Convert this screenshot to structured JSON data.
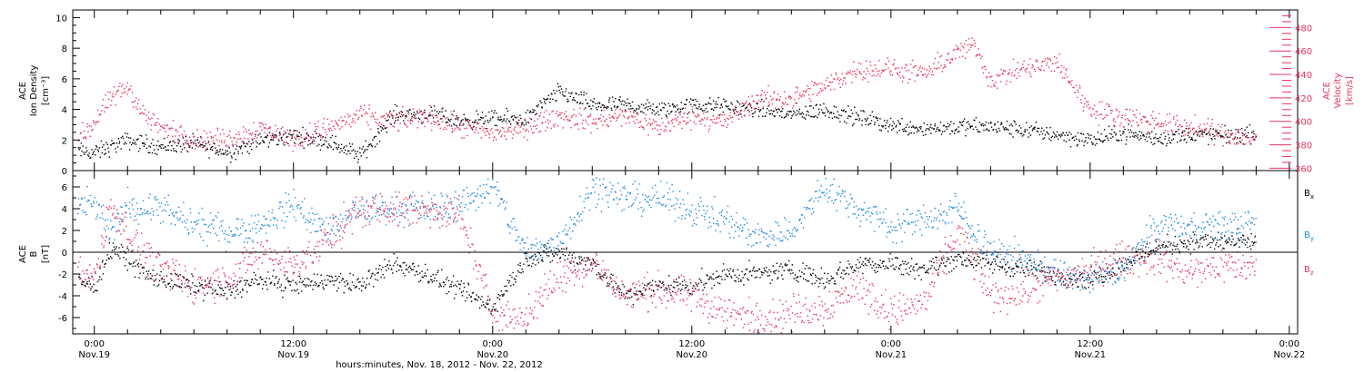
{
  "colors": {
    "black": "#000000",
    "pink": "#e8325f",
    "blue": "#1f87e5",
    "frame": "#000000"
  },
  "x_axis": {
    "title": "hours:minutes, Nov. 18, 2012 - Nov. 22, 2012",
    "range_hours": [
      -1.3,
      72.5
    ],
    "labeled_ticks": [
      {
        "hours": 0,
        "time": "0:00",
        "date": "Nov.19"
      },
      {
        "hours": 12,
        "time": "12:00",
        "date": "Nov.19"
      },
      {
        "hours": 24,
        "time": "0:00",
        "date": "Nov.20"
      },
      {
        "hours": 36,
        "time": "12:00",
        "date": "Nov.20"
      },
      {
        "hours": 48,
        "time": "0:00",
        "date": "Nov.21"
      },
      {
        "hours": 60,
        "time": "12:00",
        "date": "Nov.21"
      },
      {
        "hours": 72,
        "time": "0:00",
        "date": "Nov.22"
      }
    ],
    "minor_tick_step_hours": 2
  },
  "top_panel": {
    "left_label": [
      "ACE",
      "Ion Density",
      "[cm⁻³]"
    ],
    "right_label": [
      "ACE",
      "Velocity",
      "[km/s]"
    ],
    "left_ticks": [
      "0",
      "2",
      "4",
      "6",
      "8",
      "10"
    ],
    "right_ticks": [
      "360",
      "380",
      "400",
      "420",
      "440",
      "460",
      "480"
    ]
  },
  "bottom_panel": {
    "left_label": [
      "ACE",
      "B",
      "[nT]"
    ],
    "ticks": [
      "-6",
      "-4",
      "-2",
      "0",
      "2",
      "4",
      "6"
    ],
    "legend": [
      {
        "main": "B",
        "sub": "x",
        "color": "#000000"
      },
      {
        "main": "B",
        "sub": "y",
        "color": "#1f87e5"
      },
      {
        "main": "B",
        "sub": "z",
        "color": "#e8325f"
      }
    ]
  },
  "chart_data": [
    {
      "type": "scatter",
      "title": "",
      "xlabel": "hours:minutes, Nov. 18, 2012 - Nov. 22, 2012",
      "x_unit": "hours since 0:00 Nov.19, 2012",
      "ylabel": "ACE Ion Density [cm^-3]",
      "ylim": [
        0,
        10.5
      ],
      "y2label": "ACE Velocity [km/s]",
      "y2lim": [
        358,
        495
      ],
      "grid": false,
      "series": [
        {
          "name": "Ion Density",
          "axis": "left",
          "color": "#000000",
          "x": [
            -1,
            0,
            2,
            4,
            6,
            8,
            10,
            12,
            14,
            16,
            18,
            20,
            22,
            24,
            26,
            28,
            30,
            32,
            34,
            36,
            38,
            40,
            42,
            44,
            46,
            48,
            50,
            52,
            54,
            56,
            58,
            60,
            62,
            64,
            66,
            68,
            70
          ],
          "y": [
            1.3,
            1.2,
            2.0,
            1.6,
            1.8,
            1.2,
            2.0,
            2.3,
            2.0,
            1.0,
            3.7,
            3.7,
            3.3,
            3.4,
            3.4,
            5.2,
            4.3,
            4.3,
            4.0,
            4.3,
            4.2,
            4.0,
            3.7,
            4.0,
            3.5,
            3.0,
            2.8,
            2.9,
            2.9,
            2.7,
            2.4,
            2.0,
            2.5,
            2.1,
            2.4,
            2.3,
            2.4
          ]
        },
        {
          "name": "Velocity",
          "axis": "right",
          "color": "#e8325f",
          "x": [
            -1,
            0,
            1,
            2,
            3,
            4,
            6,
            8,
            10,
            12,
            14,
            16,
            18,
            20,
            22,
            24,
            26,
            28,
            30,
            32,
            34,
            36,
            38,
            40,
            42,
            44,
            46,
            48,
            50,
            52,
            53,
            54,
            56,
            58,
            60,
            62,
            64,
            66,
            68,
            70
          ],
          "y": [
            385,
            400,
            420,
            430,
            405,
            395,
            385,
            385,
            395,
            385,
            395,
            405,
            400,
            405,
            395,
            390,
            395,
            405,
            400,
            405,
            395,
            405,
            400,
            420,
            420,
            430,
            445,
            445,
            440,
            460,
            465,
            435,
            445,
            450,
            410,
            405,
            400,
            395,
            390,
            385
          ]
        }
      ]
    },
    {
      "type": "scatter",
      "title": "",
      "xlabel": "hours:minutes, Nov. 18, 2012 - Nov. 22, 2012",
      "x_unit": "hours since 0:00 Nov.19, 2012",
      "ylabel": "ACE B [nT]",
      "ylim": [
        -7.5,
        7.5
      ],
      "grid": false,
      "reference_line_y": 0,
      "series": [
        {
          "name": "Bx",
          "color": "#000000",
          "x": [
            -1,
            0,
            1,
            2,
            3,
            4,
            6,
            8,
            10,
            12,
            14,
            16,
            18,
            20,
            22,
            24,
            26,
            28,
            30,
            32,
            34,
            36,
            38,
            40,
            42,
            44,
            46,
            48,
            50,
            52,
            54,
            56,
            58,
            60,
            62,
            64,
            66,
            68,
            70
          ],
          "y": [
            -2.5,
            -3.0,
            0.5,
            -0.5,
            -2.0,
            -2.5,
            -3.0,
            -3.5,
            -2.5,
            -3.0,
            -2.5,
            -3.0,
            -1.0,
            -2.0,
            -3.5,
            -5.0,
            -0.5,
            0.0,
            -1.0,
            -4.0,
            -3.0,
            -3.0,
            -2.0,
            -2.0,
            -1.5,
            -2.5,
            -1.0,
            -1.0,
            -1.5,
            -0.5,
            -1.0,
            -1.5,
            -2.0,
            -2.5,
            -1.0,
            0.5,
            1.0,
            1.0,
            1.0
          ]
        },
        {
          "name": "By",
          "color": "#1f87e5",
          "x": [
            -1,
            0,
            1,
            2,
            3,
            4,
            6,
            8,
            10,
            12,
            14,
            16,
            18,
            20,
            22,
            24,
            26,
            28,
            30,
            32,
            34,
            36,
            38,
            40,
            42,
            44,
            46,
            48,
            50,
            52,
            54,
            56,
            58,
            60,
            62,
            64,
            66,
            68,
            70
          ],
          "y": [
            4.0,
            4.5,
            1.5,
            4.5,
            4.0,
            4.0,
            2.5,
            2.0,
            2.5,
            4.5,
            2.0,
            4.0,
            4.0,
            4.0,
            4.5,
            6.0,
            0.0,
            1.0,
            6.0,
            5.0,
            5.0,
            4.0,
            3.0,
            1.5,
            2.0,
            6.0,
            4.0,
            2.5,
            3.0,
            4.0,
            0.0,
            -0.5,
            -2.0,
            -2.5,
            -1.5,
            2.5,
            2.5,
            2.5,
            2.5
          ]
        },
        {
          "name": "Bz",
          "color": "#e8325f",
          "x": [
            -1,
            0,
            1,
            2,
            3,
            4,
            6,
            8,
            10,
            12,
            14,
            16,
            18,
            20,
            22,
            24,
            26,
            28,
            30,
            32,
            34,
            36,
            38,
            40,
            42,
            44,
            46,
            48,
            50,
            52,
            54,
            56,
            58,
            60,
            62,
            64,
            66,
            68,
            70
          ],
          "y": [
            -2.0,
            -2.0,
            4.5,
            2.0,
            0.0,
            -1.5,
            -3.0,
            -2.5,
            0.0,
            -1.0,
            1.0,
            4.0,
            4.0,
            4.0,
            3.5,
            -5.5,
            -6.0,
            -2.0,
            -1.0,
            -4.0,
            -3.5,
            -4.0,
            -5.5,
            -6.0,
            -5.5,
            -5.0,
            -3.0,
            -5.5,
            -4.5,
            2.0,
            -4.0,
            -3.5,
            -2.5,
            -1.5,
            -0.5,
            -0.5,
            -2.0,
            -1.0,
            -1.5
          ]
        }
      ]
    }
  ]
}
